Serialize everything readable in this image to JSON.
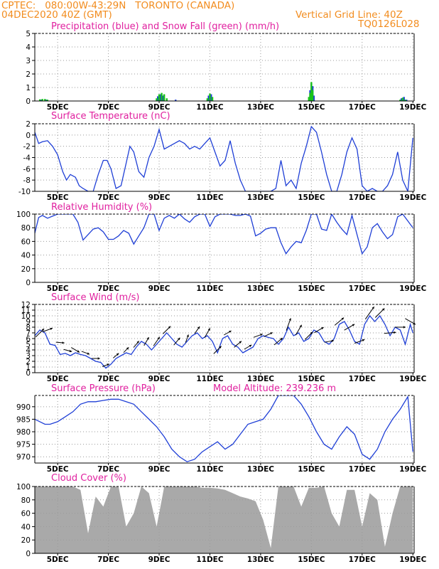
{
  "header": {
    "left_line1": "CPTEC:   080:00W-43:29N   TORONTO (CANADA)",
    "left_line2": "04DEC2020 40Z (GMT)",
    "right_line1": "Vertical Grid Line: 40Z",
    "right_line2": "TQ0126L028"
  },
  "colors": {
    "header": "#f28c1e",
    "title": "#e0209f",
    "line": "#1f3fd6",
    "snow": "#19c419",
    "cloud": "#a9a9a9",
    "grid": "#9a9a9a",
    "arrow": "#000000"
  },
  "x_axis": {
    "tick_labels": [
      "5DEC",
      "7DEC",
      "9DEC",
      "11DEC",
      "13DEC",
      "15DEC",
      "17DEC",
      "19DEC"
    ],
    "tick_days": [
      5,
      7,
      9,
      11,
      13,
      15,
      17,
      19
    ],
    "range_days": [
      4.1,
      19.05
    ]
  },
  "chart_data": [
    {
      "type": "bar",
      "id": "precip",
      "title": "Precipitation (blue) and Snow Fall (green) (mm/h)",
      "ylim": [
        0,
        5
      ],
      "yticks": [
        0,
        1,
        2,
        3,
        4,
        5
      ],
      "series": [
        {
          "name": "Precipitation",
          "color": "#1f3fd6",
          "x": [
            4.35,
            4.55,
            8.95,
            9.05,
            9.15,
            9.65,
            10.95,
            11.05,
            14.95,
            15.0,
            15.05,
            15.1,
            18.55,
            18.65,
            18.75
          ],
          "values": [
            0.1,
            0.1,
            0.35,
            0.5,
            0.4,
            0.1,
            0.4,
            0.5,
            0.8,
            1.3,
            1.1,
            0.4,
            0.2,
            0.3,
            0.1
          ]
        },
        {
          "name": "Snow Fall",
          "color": "#19c419",
          "x": [
            4.3,
            4.4,
            4.5,
            4.6,
            8.9,
            9.0,
            9.1,
            9.2,
            9.3,
            10.9,
            11.0,
            11.1,
            14.9,
            14.95,
            15.0,
            15.05,
            18.5,
            18.6,
            18.7
          ],
          "values": [
            0.12,
            0.15,
            0.15,
            0.1,
            0.2,
            0.5,
            0.6,
            0.5,
            0.2,
            0.2,
            0.55,
            0.3,
            0.3,
            0.6,
            1.4,
            0.8,
            0.1,
            0.25,
            0.1
          ]
        }
      ]
    },
    {
      "type": "line",
      "id": "temp",
      "title": "Surface Temperature (nC)",
      "ylim": [
        -10,
        2
      ],
      "yticks": [
        -10,
        -8,
        -6,
        -4,
        -2,
        0,
        2
      ],
      "x": [
        4.1,
        4.25,
        4.4,
        4.6,
        4.8,
        5.0,
        5.2,
        5.35,
        5.5,
        5.7,
        5.85,
        6.0,
        6.2,
        6.4,
        6.6,
        6.8,
        6.95,
        7.1,
        7.3,
        7.5,
        7.7,
        7.85,
        8.0,
        8.2,
        8.4,
        8.6,
        8.8,
        9.0,
        9.2,
        9.4,
        9.6,
        9.8,
        10.0,
        10.2,
        10.4,
        10.6,
        10.8,
        11.0,
        11.2,
        11.4,
        11.6,
        11.8,
        12.0,
        12.2,
        12.4,
        12.6,
        12.8,
        13.0,
        13.2,
        13.4,
        13.6,
        13.8,
        14.0,
        14.2,
        14.4,
        14.6,
        14.8,
        15.0,
        15.2,
        15.4,
        15.6,
        15.8,
        16.0,
        16.2,
        16.4,
        16.6,
        16.8,
        17.0,
        17.2,
        17.4,
        17.6,
        17.8,
        18.0,
        18.2,
        18.4,
        18.6,
        18.8,
        19.0
      ],
      "values": [
        0.5,
        -1.5,
        -1.2,
        -1.0,
        -2.0,
        -3.5,
        -6.5,
        -8.0,
        -7.0,
        -7.5,
        -9.0,
        -9.5,
        -10.5,
        -11,
        -7.0,
        -4.5,
        -4.5,
        -6.0,
        -9.5,
        -9.0,
        -5.0,
        -2.0,
        -3.0,
        -6.5,
        -7.5,
        -4.0,
        -2.0,
        1.0,
        -2.5,
        -2.0,
        -1.5,
        -1.0,
        -1.5,
        -2.5,
        -2.0,
        -2.5,
        -1.5,
        -0.5,
        -3.0,
        -5.5,
        -4.5,
        -1.0,
        -5.0,
        -8.0,
        -10.5,
        -12,
        -11,
        -12,
        -11,
        -10.5,
        -9.5,
        -4.5,
        -9.0,
        -8.0,
        -9.5,
        -5.0,
        -2.0,
        1.5,
        0.5,
        -3.0,
        -7.0,
        -10.5,
        -11,
        -7.0,
        -3.0,
        -0.5,
        -2.5,
        -9.0,
        -10.0,
        -9.5,
        -10.5,
        -11,
        -9.0,
        -7.0,
        -3.0,
        -8.0,
        -10.5,
        -0.5
      ]
    },
    {
      "type": "line",
      "id": "rh",
      "title": "Relative Humidity (%)",
      "ylim": [
        0,
        100
      ],
      "yticks": [
        0,
        20,
        40,
        60,
        80,
        100
      ],
      "x": [
        4.1,
        4.25,
        4.4,
        4.6,
        4.8,
        5.0,
        5.2,
        5.4,
        5.6,
        5.8,
        6.0,
        6.2,
        6.4,
        6.6,
        6.8,
        7.0,
        7.2,
        7.4,
        7.6,
        7.8,
        8.0,
        8.2,
        8.4,
        8.6,
        8.8,
        9.0,
        9.2,
        9.4,
        9.6,
        9.8,
        10.0,
        10.2,
        10.4,
        10.6,
        10.8,
        11.0,
        11.2,
        11.4,
        11.6,
        11.8,
        12.0,
        12.2,
        12.4,
        12.6,
        12.8,
        13.0,
        13.2,
        13.4,
        13.6,
        13.8,
        14.0,
        14.2,
        14.4,
        14.6,
        14.8,
        15.0,
        15.2,
        15.4,
        15.6,
        15.8,
        16.0,
        16.2,
        16.4,
        16.6,
        16.8,
        17.0,
        17.2,
        17.4,
        17.6,
        17.8,
        18.0,
        18.2,
        18.4,
        18.6,
        18.8,
        19.0
      ],
      "values": [
        72,
        95,
        98,
        94,
        97,
        100,
        102,
        103,
        100,
        88,
        62,
        70,
        78,
        80,
        74,
        63,
        63,
        68,
        76,
        72,
        56,
        68,
        80,
        100,
        100,
        76,
        94,
        98,
        94,
        100,
        93,
        88,
        96,
        100,
        102,
        82,
        96,
        100,
        100,
        100,
        98,
        98,
        100,
        97,
        68,
        72,
        78,
        80,
        80,
        58,
        42,
        52,
        60,
        58,
        76,
        100,
        100,
        78,
        76,
        100,
        88,
        78,
        70,
        98,
        70,
        42,
        52,
        80,
        86,
        74,
        64,
        70,
        96,
        100,
        90,
        80
      ],
      "extra": {
        "x": [
          6.25,
          6.4,
          6.55
        ],
        "values": [
          78,
          82,
          86
        ]
      }
    },
    {
      "type": "line",
      "id": "wind",
      "title": "Surface Wind (m/s)",
      "ylim": [
        0,
        12
      ],
      "yticks": [
        0,
        1,
        2,
        3,
        4,
        5,
        6,
        7,
        8,
        9,
        10,
        11,
        12
      ],
      "x": [
        4.1,
        4.3,
        4.5,
        4.7,
        4.9,
        5.1,
        5.3,
        5.5,
        5.7,
        5.9,
        6.1,
        6.3,
        6.5,
        6.7,
        6.9,
        7.1,
        7.3,
        7.5,
        7.7,
        7.9,
        8.1,
        8.3,
        8.5,
        8.7,
        8.9,
        9.1,
        9.3,
        9.5,
        9.7,
        9.9,
        10.1,
        10.3,
        10.5,
        10.7,
        10.9,
        11.1,
        11.3,
        11.5,
        11.7,
        11.9,
        12.1,
        12.3,
        12.5,
        12.7,
        12.9,
        13.1,
        13.3,
        13.5,
        13.7,
        13.9,
        14.1,
        14.3,
        14.5,
        14.7,
        14.9,
        15.1,
        15.3,
        15.5,
        15.7,
        15.9,
        16.1,
        16.3,
        16.5,
        16.7,
        16.9,
        17.1,
        17.3,
        17.5,
        17.7,
        17.9,
        18.1,
        18.3,
        18.5,
        18.7,
        18.9,
        19.0
      ],
      "values": [
        6.5,
        7.5,
        7.0,
        5.0,
        4.8,
        3.2,
        3.4,
        3.0,
        3.5,
        3.2,
        3.0,
        2.5,
        2.0,
        1.8,
        0.8,
        1.5,
        2.5,
        3.0,
        3.5,
        3.2,
        4.5,
        5.5,
        5.0,
        4.0,
        5.0,
        6.0,
        7.0,
        6.0,
        5.0,
        4.5,
        5.5,
        6.5,
        7.0,
        6.0,
        6.5,
        5.5,
        3.5,
        6.0,
        6.5,
        5.0,
        4.5,
        3.5,
        4.0,
        4.5,
        6.0,
        6.5,
        6.2,
        6.0,
        5.0,
        6.0,
        8.0,
        6.5,
        7.0,
        5.5,
        6.0,
        7.5,
        7.0,
        5.5,
        5.0,
        6.0,
        8.5,
        9.0,
        7.5,
        5.5,
        5.0,
        8.5,
        10.0,
        9.0,
        10.0,
        8.5,
        6.5,
        8.0,
        7.5,
        5.0,
        8.5,
        7.0
      ]
    },
    {
      "type": "line",
      "id": "pres",
      "title": "Surface Pressure (hPa)",
      "subtitle": "Model Altitude: 239.236 m",
      "ylim": [
        967.5,
        994.5
      ],
      "yticks": [
        970,
        975,
        980,
        985,
        990
      ],
      "x": [
        4.1,
        4.3,
        4.5,
        4.7,
        5.0,
        5.3,
        5.6,
        5.9,
        6.2,
        6.5,
        6.8,
        7.1,
        7.4,
        7.7,
        8.0,
        8.3,
        8.6,
        8.9,
        9.2,
        9.5,
        9.8,
        10.1,
        10.4,
        10.7,
        11.0,
        11.3,
        11.6,
        11.9,
        12.2,
        12.5,
        12.8,
        13.1,
        13.4,
        13.7,
        14.0,
        14.3,
        14.6,
        14.9,
        15.2,
        15.5,
        15.8,
        16.1,
        16.4,
        16.7,
        17.0,
        17.3,
        17.6,
        17.9,
        18.2,
        18.5,
        18.8,
        19.0
      ],
      "values": [
        985,
        984,
        983,
        983,
        984,
        986,
        988,
        991,
        992,
        992,
        992.5,
        993,
        993,
        992,
        991,
        988,
        985,
        982,
        978,
        973,
        970,
        968,
        969,
        972,
        974,
        976,
        973,
        975,
        979,
        983,
        984,
        985,
        989,
        995,
        996,
        995,
        991,
        986,
        980,
        975,
        973,
        978,
        982,
        979,
        971,
        969,
        973,
        980,
        985,
        989,
        994,
        972
      ]
    },
    {
      "type": "area",
      "id": "cloud",
      "title": "Cloud Cover (%)",
      "ylim": [
        0,
        100
      ],
      "yticks": [
        0,
        20,
        40,
        60,
        80,
        100
      ],
      "x": [
        4.1,
        4.4,
        4.7,
        5.0,
        5.3,
        5.6,
        5.9,
        6.2,
        6.5,
        6.8,
        7.1,
        7.4,
        7.7,
        8.0,
        8.3,
        8.6,
        8.9,
        9.2,
        9.5,
        9.8,
        10.1,
        10.4,
        10.7,
        11.0,
        11.3,
        11.6,
        11.9,
        12.2,
        12.5,
        12.8,
        13.1,
        13.4,
        13.7,
        14.0,
        14.3,
        14.6,
        14.9,
        15.2,
        15.5,
        15.8,
        16.1,
        16.4,
        16.7,
        17.0,
        17.3,
        17.6,
        17.9,
        18.2,
        18.5,
        18.8,
        19.0
      ],
      "values": [
        100,
        100,
        100,
        100,
        100,
        100,
        95,
        30,
        85,
        70,
        100,
        100,
        40,
        60,
        100,
        90,
        40,
        100,
        100,
        100,
        100,
        100,
        98,
        98,
        97,
        95,
        90,
        85,
        82,
        78,
        50,
        8,
        100,
        100,
        100,
        70,
        98,
        98,
        100,
        60,
        40,
        95,
        95,
        40,
        90,
        80,
        10,
        60,
        100,
        100,
        100
      ]
    }
  ],
  "wind_arrows": {
    "x": [
      4.3,
      4.6,
      5.1,
      5.4,
      5.7,
      6.1,
      6.5,
      6.9,
      7.3,
      7.7,
      8.1,
      8.5,
      8.9,
      9.3,
      9.7,
      10.1,
      10.5,
      10.9,
      11.3,
      11.7,
      12.1,
      12.5,
      12.9,
      13.3,
      13.7,
      14.1,
      14.5,
      14.9,
      15.3,
      15.7,
      16.1,
      16.5,
      16.9,
      17.3,
      17.7,
      18.1,
      18.5,
      18.9
    ],
    "speed": [
      8,
      7,
      5,
      5,
      6,
      5,
      5,
      4,
      4,
      4,
      5,
      6,
      7,
      7,
      6,
      5,
      5,
      7,
      7,
      5,
      6,
      5,
      6,
      6,
      7,
      9,
      8,
      7,
      7,
      6,
      8,
      8,
      7,
      11,
      9,
      8,
      7,
      8
    ],
    "dir_deg": [
      225,
      250,
      275,
      285,
      300,
      290,
      270,
      250,
      230,
      225,
      220,
      210,
      215,
      225,
      220,
      200,
      215,
      210,
      225,
      240,
      230,
      240,
      250,
      245,
      230,
      200,
      210,
      225,
      240,
      260,
      230,
      240,
      250,
      215,
      225,
      265,
      270,
      300
    ]
  }
}
